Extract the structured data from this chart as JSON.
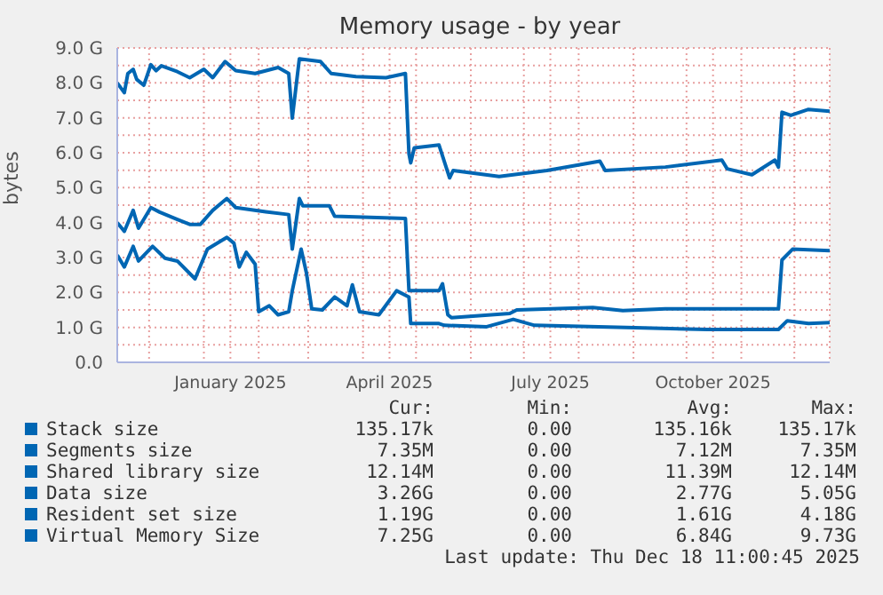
{
  "chart_data": {
    "type": "line",
    "title": "Memory usage - by year",
    "ylabel": "bytes",
    "xlim": [
      "2024-11-13",
      "2025-12-21"
    ],
    "ylim": [
      0,
      9
    ],
    "yticks": [
      {
        "value": 0,
        "label": "0.0"
      },
      {
        "value": 0.5,
        "label": null
      },
      {
        "value": 1,
        "label": "1.0 G"
      },
      {
        "value": 1.5,
        "label": null
      },
      {
        "value": 2,
        "label": "2.0 G"
      },
      {
        "value": 2.5,
        "label": null
      },
      {
        "value": 3,
        "label": "3.0 G"
      },
      {
        "value": 3.5,
        "label": null
      },
      {
        "value": 4,
        "label": "4.0 G"
      },
      {
        "value": 4.5,
        "label": null
      },
      {
        "value": 5,
        "label": "5.0 G"
      },
      {
        "value": 5.5,
        "label": null
      },
      {
        "value": 6,
        "label": "6.0 G"
      },
      {
        "value": 6.5,
        "label": null
      },
      {
        "value": 7,
        "label": "7.0 G"
      },
      {
        "value": 7.5,
        "label": null
      },
      {
        "value": 8,
        "label": "8.0 G"
      },
      {
        "value": 8.5,
        "label": null
      },
      {
        "value": 9,
        "label": "9.0 G"
      }
    ],
    "xticks": [
      {
        "value": "2024-12-01",
        "label": null
      },
      {
        "value": "2025-01-01",
        "label": null
      },
      {
        "value": "2025-01-16",
        "label": "January 2025"
      },
      {
        "value": "2025-02-01",
        "label": null
      },
      {
        "value": "2025-03-01",
        "label": null
      },
      {
        "value": "2025-04-01",
        "label": null
      },
      {
        "value": "2025-04-16",
        "label": "April 2025"
      },
      {
        "value": "2025-05-01",
        "label": null
      },
      {
        "value": "2025-06-01",
        "label": null
      },
      {
        "value": "2025-07-01",
        "label": null
      },
      {
        "value": "2025-07-16",
        "label": "July 2025"
      },
      {
        "value": "2025-08-01",
        "label": null
      },
      {
        "value": "2025-09-01",
        "label": null
      },
      {
        "value": "2025-10-01",
        "label": null
      },
      {
        "value": "2025-10-16",
        "label": "October 2025"
      },
      {
        "value": "2025-11-01",
        "label": null
      },
      {
        "value": "2025-12-01",
        "label": null
      }
    ],
    "grid": true,
    "legend": "bottom",
    "marker": "none",
    "line_style": "solid",
    "series": [
      {
        "name": "Stack size",
        "color": "#0066b3"
      },
      {
        "name": "Segments size",
        "color": "#0066b3"
      },
      {
        "name": "Shared library size",
        "color": "#0066b3"
      },
      {
        "name": "Data size",
        "color": "#0066b3",
        "x": [
          "2024-11-13",
          "2024-11-17",
          "2024-11-22",
          "2024-11-25",
          "2024-12-02",
          "2024-12-07",
          "2024-12-17",
          "2024-12-24",
          "2024-12-30",
          "2025-01-06",
          "2025-01-14",
          "2025-01-19",
          "2025-02-05",
          "2025-02-18",
          "2025-02-20",
          "2025-02-24",
          "2025-02-26",
          "2025-03-13",
          "2025-03-16",
          "2025-04-25",
          "2025-04-27",
          "2025-05-14",
          "2025-05-16",
          "2025-05-19",
          "2025-05-21",
          "2025-06-23",
          "2025-06-27",
          "2025-08-09",
          "2025-08-26",
          "2025-09-19",
          "2025-11-22",
          "2025-11-24",
          "2025-11-30",
          "2025-12-21"
        ],
        "values": [
          4.0,
          3.75,
          4.35,
          3.84,
          4.43,
          4.3,
          4.09,
          3.95,
          3.95,
          4.35,
          4.69,
          4.43,
          4.31,
          4.23,
          3.24,
          4.69,
          4.48,
          4.48,
          4.18,
          4.12,
          2.05,
          2.05,
          2.25,
          1.36,
          1.28,
          1.4,
          1.5,
          1.57,
          1.48,
          1.53,
          1.53,
          2.93,
          3.24,
          3.2
        ]
      },
      {
        "name": "Resident set size",
        "color": "#0066b3",
        "x": [
          "2024-11-13",
          "2024-11-17",
          "2024-11-22",
          "2024-11-25",
          "2024-12-03",
          "2024-12-10",
          "2024-12-17",
          "2024-12-27",
          "2025-01-03",
          "2025-01-14",
          "2025-01-18",
          "2025-01-21",
          "2025-01-25",
          "2025-01-30",
          "2025-02-01",
          "2025-02-07",
          "2025-02-12",
          "2025-02-18",
          "2025-02-20",
          "2025-02-25",
          "2025-02-28",
          "2025-03-03",
          "2025-03-09",
          "2025-03-16",
          "2025-03-23",
          "2025-03-26",
          "2025-03-30",
          "2025-04-10",
          "2025-04-20",
          "2025-04-27",
          "2025-04-28",
          "2025-05-14",
          "2025-05-17",
          "2025-06-10",
          "2025-06-25",
          "2025-07-07",
          "2025-09-02",
          "2025-10-13",
          "2025-11-22",
          "2025-11-27",
          "2025-12-09",
          "2025-12-21"
        ],
        "values": [
          3.07,
          2.73,
          3.32,
          2.9,
          3.32,
          2.98,
          2.9,
          2.39,
          3.24,
          3.58,
          3.41,
          2.73,
          3.15,
          2.81,
          1.45,
          1.62,
          1.36,
          1.45,
          2.05,
          3.24,
          2.56,
          1.53,
          1.5,
          1.87,
          1.62,
          2.22,
          1.45,
          1.36,
          2.05,
          1.87,
          1.11,
          1.11,
          1.06,
          1.02,
          1.23,
          1.06,
          0.99,
          0.94,
          0.94,
          1.19,
          1.11,
          1.14
        ]
      },
      {
        "name": "Virtual Memory Size",
        "color": "#0066b3",
        "x": [
          "2024-11-13",
          "2024-11-17",
          "2024-11-19",
          "2024-11-22",
          "2024-11-24",
          "2024-11-28",
          "2024-12-02",
          "2024-12-05",
          "2024-12-08",
          "2024-12-17",
          "2024-12-24",
          "2025-01-01",
          "2025-01-06",
          "2025-01-13",
          "2025-01-19",
          "2025-01-30",
          "2025-02-12",
          "2025-02-18",
          "2025-02-20",
          "2025-02-24",
          "2025-03-08",
          "2025-03-14",
          "2025-03-28",
          "2025-04-14",
          "2025-04-25",
          "2025-04-27",
          "2025-04-28",
          "2025-04-30",
          "2025-05-14",
          "2025-05-20",
          "2025-05-22",
          "2025-06-17",
          "2025-07-14",
          "2025-08-13",
          "2025-08-16",
          "2025-09-19",
          "2025-10-21",
          "2025-10-24",
          "2025-11-07",
          "2025-11-20",
          "2025-11-22",
          "2025-11-24",
          "2025-11-29",
          "2025-12-09",
          "2025-12-21"
        ],
        "values": [
          8.0,
          7.72,
          8.27,
          8.39,
          8.1,
          7.93,
          8.52,
          8.35,
          8.49,
          8.32,
          8.15,
          8.39,
          8.15,
          8.61,
          8.35,
          8.27,
          8.44,
          8.27,
          6.99,
          8.69,
          8.61,
          8.27,
          8.18,
          8.15,
          8.27,
          5.97,
          5.71,
          6.14,
          6.22,
          5.28,
          5.49,
          5.32,
          5.49,
          5.76,
          5.49,
          5.59,
          5.79,
          5.54,
          5.37,
          5.79,
          5.59,
          7.16,
          7.07,
          7.24,
          7.19
        ]
      }
    ],
    "annotations": [
      "Cur:",
      "Min:",
      "Avg:",
      "Max:",
      "135.17k",
      "0.00",
      "135.16k",
      "135.17k",
      "7.35M",
      "0.00",
      "7.12M",
      "7.35M",
      "12.14M",
      "0.00",
      "11.39M",
      "12.14M",
      "3.26G",
      "0.00",
      "2.77G",
      "5.05G",
      "1.19G",
      "0.00",
      "1.61G",
      "4.18G",
      "7.25G",
      "0.00",
      "6.84G",
      "9.73G",
      "Last update: Thu Dec 18 11:00:45 2025"
    ]
  }
}
